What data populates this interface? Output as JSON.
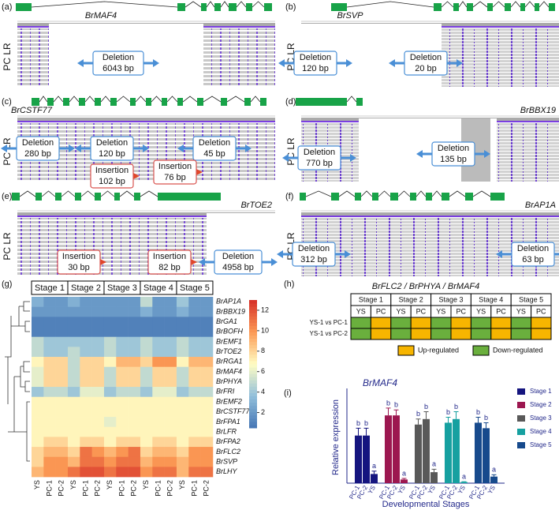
{
  "panels": [
    {
      "label": "(a)",
      "gene": "BrMAF4",
      "track": "PC LR",
      "callouts": [
        {
          "kind": "Deletion",
          "size": "6043 bp"
        }
      ]
    },
    {
      "label": "(b)",
      "gene": "BrSVP",
      "track": "PC LR",
      "callouts": [
        {
          "kind": "Deletion",
          "size": "120 bp"
        },
        {
          "kind": "Deletion",
          "size": "20 bp"
        }
      ]
    },
    {
      "label": "(c)",
      "gene": "BrCSTF77",
      "track": "PC LR",
      "callouts": [
        {
          "kind": "Deletion",
          "size": "280 bp"
        },
        {
          "kind": "Deletion",
          "size": "120 bp"
        },
        {
          "kind": "Deletion",
          "size": "45 bp"
        },
        {
          "kind": "Insertion",
          "size": "102 bp"
        },
        {
          "kind": "Insertion",
          "size": "76 bp"
        }
      ]
    },
    {
      "label": "(d)",
      "gene": "BrBBX19",
      "track": "PC LR",
      "callouts": [
        {
          "kind": "Deletion",
          "size": "770 bp"
        },
        {
          "kind": "Deletion",
          "size": "135 bp"
        }
      ]
    },
    {
      "label": "(e)",
      "gene": "BrTOE2",
      "track": "PC LR",
      "callouts": [
        {
          "kind": "Insertion",
          "size": "30 bp"
        },
        {
          "kind": "Insertion",
          "size": "82 bp"
        },
        {
          "kind": "Deletion",
          "size": "4958 bp"
        }
      ]
    },
    {
      "label": "(f)",
      "gene": "BrAP1A",
      "track": "PC LR",
      "callouts": [
        {
          "kind": "Deletion",
          "size": "312 bp"
        },
        {
          "kind": "Deletion",
          "size": "63 bp"
        }
      ]
    }
  ],
  "heatmap": {
    "label": "(g)",
    "stages": [
      "Stage 1",
      "Stage 2",
      "Stage 3",
      "Stage 4",
      "Stage 5"
    ],
    "columns": [
      "YS",
      "PC-1",
      "PC-2",
      "YS",
      "PC-1",
      "PC-2",
      "YS",
      "PC-1",
      "PC-2",
      "YS",
      "PC-1",
      "PC-2",
      "YS",
      "PC-1",
      "PC-2"
    ],
    "genes": [
      "BrAP1A",
      "BrBBX19",
      "BrGA1",
      "BrBOFH",
      "BrEMF1",
      "BrTOE2",
      "BrRGA1",
      "BrMAF4",
      "BrPHYA",
      "BrFRI",
      "BrEMF2",
      "BrCSTF77",
      "BrFPA1",
      "BrLFR",
      "BrFPA2",
      "BrFLC2",
      "BrSVP",
      "BrLHY"
    ],
    "values": [
      [
        3,
        2,
        2,
        3,
        2,
        2,
        2,
        2,
        2,
        5,
        2,
        2,
        4,
        2,
        2
      ],
      [
        2,
        2,
        2,
        2,
        2,
        2,
        2,
        2,
        2,
        3,
        2,
        2,
        3,
        2,
        2
      ],
      [
        1,
        1,
        1,
        1,
        1,
        1,
        1,
        1,
        1,
        1,
        1,
        1,
        1,
        1,
        1
      ],
      [
        1,
        1,
        1,
        1,
        1,
        1,
        1,
        1,
        1,
        1,
        1,
        1,
        1,
        1,
        1
      ],
      [
        5,
        4,
        4,
        4,
        4,
        4,
        5,
        4,
        4,
        5,
        4,
        4,
        5,
        4,
        4
      ],
      [
        5,
        4,
        4,
        5,
        4,
        4,
        5,
        4,
        4,
        5,
        4,
        4,
        5,
        4,
        4
      ],
      [
        7,
        8,
        8,
        5,
        8,
        8,
        7,
        9,
        9,
        8,
        10,
        10,
        7,
        9,
        9
      ],
      [
        6,
        8,
        8,
        5,
        8,
        8,
        5,
        8,
        8,
        5,
        8,
        8,
        5,
        8,
        8
      ],
      [
        6,
        8,
        8,
        5,
        8,
        8,
        5,
        8,
        8,
        5,
        8,
        8,
        5,
        8,
        8
      ],
      [
        4,
        5,
        5,
        4,
        6,
        6,
        4,
        5,
        5,
        4,
        6,
        6,
        4,
        5,
        5
      ],
      [
        7,
        7,
        7,
        7,
        7,
        7,
        7,
        7,
        7,
        7,
        7,
        7,
        7,
        7,
        7
      ],
      [
        7,
        7,
        7,
        7,
        7,
        7,
        7,
        7,
        7,
        7,
        7,
        7,
        7,
        7,
        7
      ],
      [
        7,
        7,
        7,
        7,
        7,
        7,
        6,
        7,
        7,
        7,
        7,
        7,
        7,
        7,
        7
      ],
      [
        7,
        7,
        7,
        7,
        7,
        7,
        7,
        7,
        7,
        7,
        7,
        7,
        7,
        7,
        7
      ],
      [
        7,
        8,
        8,
        7,
        8,
        8,
        7,
        8,
        8,
        7,
        8,
        8,
        7,
        8,
        8
      ],
      [
        8,
        9,
        9,
        8,
        11,
        10,
        9,
        10,
        11,
        8,
        9,
        9,
        8,
        10,
        10
      ],
      [
        8,
        10,
        10,
        9,
        11,
        11,
        10,
        11,
        11,
        9,
        10,
        10,
        9,
        10,
        10
      ],
      [
        9,
        10,
        10,
        11,
        12,
        12,
        11,
        12,
        12,
        10,
        11,
        11,
        9,
        11,
        11
      ]
    ],
    "colorbar_range": [
      0.5,
      13
    ],
    "colorbar_ticks": [
      2,
      4,
      6,
      8,
      10,
      12
    ],
    "colors": [
      "#4575b4",
      "#91bfdb",
      "#fffdc4",
      "#fc9a55",
      "#d62f27"
    ]
  },
  "table": {
    "label": "(h)",
    "title": "BrFLC2 / BrPHYA / BrMAF4",
    "stages": [
      "Stage 1",
      "Stage 2",
      "Stage 3",
      "Stage 4",
      "Stage 5"
    ],
    "subheaders": [
      "YS",
      "PC",
      "YS",
      "PC",
      "YS",
      "PC",
      "YS",
      "PC",
      "YS",
      "PC"
    ],
    "rows": [
      "YS-1 vs PC-1",
      "YS-1 vs PC-2"
    ],
    "legend": [
      {
        "name": "Up-regulated",
        "color": "#f7b500"
      },
      {
        "name": "Down-regulated",
        "color": "#6aaf3d"
      }
    ],
    "cells": [
      [
        1,
        0,
        1,
        0,
        1,
        0,
        1,
        0,
        1,
        0
      ],
      [
        1,
        0,
        1,
        0,
        1,
        0,
        1,
        0,
        1,
        0
      ]
    ]
  },
  "chart_data": {
    "type": "bar",
    "label": "(i)",
    "title": "BrMAF4",
    "ylabel": "Relative expression",
    "xlabel": "Developmental Stages",
    "categories": [
      "PC-1",
      "PC-2",
      "YS"
    ],
    "ylim": [
      0,
      25
    ],
    "series": [
      {
        "name": "Stage 1",
        "color": "#15157f",
        "values": [
          13,
          13,
          2.5
        ],
        "errors": [
          2,
          2,
          0.8
        ],
        "significance": [
          "b",
          "b",
          "a"
        ]
      },
      {
        "name": "Stage 2",
        "color": "#9c1750",
        "values": [
          18.5,
          18.5,
          1
        ],
        "errors": [
          2,
          1.5,
          0.3
        ],
        "significance": [
          "b",
          "b",
          "a"
        ]
      },
      {
        "name": "Stage 3",
        "color": "#595959",
        "values": [
          16,
          17.5,
          3
        ],
        "errors": [
          1.5,
          2,
          0.8
        ],
        "significance": [
          "b",
          "b",
          "a"
        ]
      },
      {
        "name": "Stage 4",
        "color": "#16a0a0",
        "values": [
          16.5,
          17.5,
          0.3
        ],
        "errors": [
          1.5,
          2,
          0.1
        ],
        "significance": [
          "b",
          "b",
          "a"
        ]
      },
      {
        "name": "Stage 5",
        "color": "#174a8c",
        "values": [
          16.5,
          15,
          1.8
        ],
        "errors": [
          1.5,
          1.5,
          0.5
        ],
        "significance": [
          "b",
          "b",
          "a"
        ]
      }
    ]
  }
}
